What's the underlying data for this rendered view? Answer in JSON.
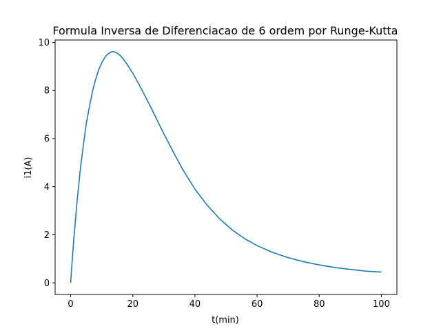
{
  "chart_data": {
    "type": "line",
    "title": "Formula Inversa de Diferenciacao de 6 ordem por Runge-Kutta",
    "xlabel": "t(min)",
    "ylabel": "i1(A)",
    "xlim": [
      -5,
      105
    ],
    "ylim": [
      -0.48,
      10.1
    ],
    "xticks": [
      0,
      20,
      40,
      60,
      80,
      100
    ],
    "yticks": [
      0,
      2,
      4,
      6,
      8,
      10
    ],
    "grid": false,
    "series": [
      {
        "color": "#1f77b4",
        "x": [
          0,
          0.5,
          1,
          2,
          3,
          4,
          5,
          6,
          7,
          8,
          9,
          10,
          11,
          12,
          13,
          13.5,
          14,
          15,
          16,
          17,
          18,
          20,
          22,
          24,
          26,
          28,
          30,
          33,
          36,
          40,
          44,
          48,
          52,
          56,
          60,
          65,
          70,
          75,
          80,
          85,
          90,
          95,
          100
        ],
        "y": [
          0,
          0.95,
          1.8,
          3.3,
          4.6,
          5.65,
          6.6,
          7.3,
          7.95,
          8.45,
          8.85,
          9.15,
          9.38,
          9.52,
          9.6,
          9.62,
          9.61,
          9.55,
          9.45,
          9.3,
          9.12,
          8.72,
          8.25,
          7.76,
          7.25,
          6.72,
          6.2,
          5.45,
          4.73,
          3.9,
          3.22,
          2.66,
          2.2,
          1.84,
          1.55,
          1.27,
          1.05,
          0.88,
          0.75,
          0.64,
          0.56,
          0.49,
          0.45
        ]
      }
    ]
  }
}
